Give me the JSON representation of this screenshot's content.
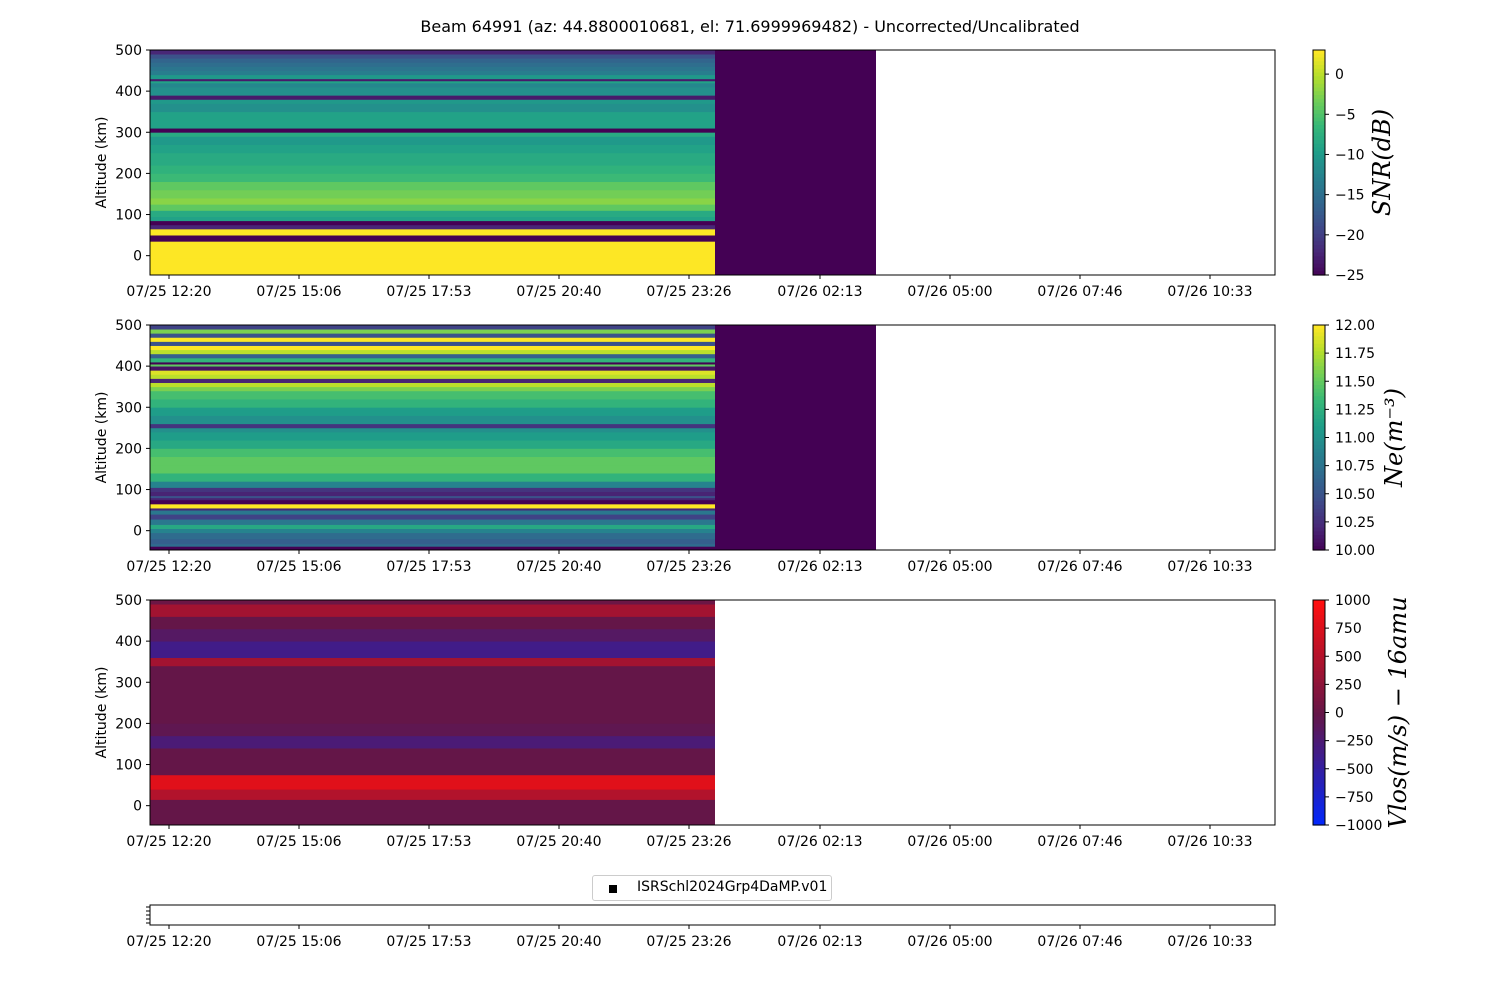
{
  "chart_data": {
    "title": "Beam 64991 (az: 44.8800010681, el: 71.6999969482) - Uncorrected/Uncalibrated",
    "x_ticks": [
      "07/25 12:20",
      "07/25 15:06",
      "07/25 17:53",
      "07/25 20:40",
      "07/25 23:26",
      "07/26 02:13",
      "07/26 05:00",
      "07/26 07:46",
      "07/26 10:33"
    ],
    "panels": [
      {
        "type": "heatmap",
        "ylabel": "Altitude (km)",
        "yticks": [
          "500",
          "400",
          "300",
          "200",
          "100",
          "0"
        ],
        "ylim": [
          -47,
          500
        ],
        "colorbar_label": "SNR(dB)",
        "colorbar_ticks": [
          "0",
          "−5",
          "−10",
          "−15",
          "−20",
          "−25"
        ],
        "colorbar_range": [
          -25,
          3
        ],
        "colormap": "viridis",
        "fill_end": "07/25 23:26",
        "dark_end": "07/26 02:13",
        "profile": [
          [
            -47,
            3
          ],
          [
            -42,
            3
          ],
          [
            -5,
            3
          ],
          [
            35,
            -25
          ],
          [
            50,
            3
          ],
          [
            65,
            -22
          ],
          [
            75,
            -25
          ],
          [
            85,
            -9
          ],
          [
            95,
            -8
          ],
          [
            110,
            -4
          ],
          [
            125,
            -2
          ],
          [
            140,
            -3
          ],
          [
            160,
            -4
          ],
          [
            180,
            -6
          ],
          [
            200,
            -7
          ],
          [
            220,
            -8
          ],
          [
            250,
            -9
          ],
          [
            270,
            -10
          ],
          [
            290,
            -8
          ],
          [
            300,
            -25
          ],
          [
            310,
            -9
          ],
          [
            330,
            -9
          ],
          [
            350,
            -11
          ],
          [
            370,
            -10
          ],
          [
            380,
            -23
          ],
          [
            390,
            -11
          ],
          [
            410,
            -12
          ],
          [
            420,
            -9
          ],
          [
            425,
            -23
          ],
          [
            430,
            -10
          ],
          [
            440,
            -13
          ],
          [
            450,
            -14
          ],
          [
            460,
            -15
          ],
          [
            470,
            -16
          ],
          [
            480,
            -18
          ],
          [
            490,
            -22
          ]
        ]
      },
      {
        "type": "heatmap",
        "ylabel": "Altitude (km)",
        "yticks": [
          "500",
          "400",
          "300",
          "200",
          "100",
          "0"
        ],
        "ylim": [
          -47,
          500
        ],
        "colorbar_label": "Ne(m⁻³)",
        "colorbar_ticks": [
          "12.00",
          "11.75",
          "11.50",
          "11.25",
          "11.00",
          "10.75",
          "10.50",
          "10.25",
          "10.00"
        ],
        "colorbar_range": [
          10,
          12
        ],
        "colormap": "viridis",
        "fill_end": "07/25 23:26",
        "dark_end": "07/26 02:13",
        "profile": [
          [
            -47,
            10
          ],
          [
            -38,
            10.7
          ],
          [
            -32,
            10.6
          ],
          [
            -20,
            10.7
          ],
          [
            -5,
            10.9
          ],
          [
            5,
            11.2
          ],
          [
            15,
            10.8
          ],
          [
            28,
            10.4
          ],
          [
            40,
            10.8
          ],
          [
            50,
            10.2
          ],
          [
            55,
            12
          ],
          [
            65,
            10
          ],
          [
            75,
            10.2
          ],
          [
            80,
            10.5
          ],
          [
            85,
            10.2
          ],
          [
            95,
            10.3
          ],
          [
            105,
            10.9
          ],
          [
            120,
            11.3
          ],
          [
            140,
            11.5
          ],
          [
            160,
            11.5
          ],
          [
            180,
            11.4
          ],
          [
            200,
            11.2
          ],
          [
            220,
            11.1
          ],
          [
            240,
            11.0
          ],
          [
            250,
            10.3
          ],
          [
            260,
            11.0
          ],
          [
            280,
            11.1
          ],
          [
            300,
            11.3
          ],
          [
            320,
            11.4
          ],
          [
            340,
            11.6
          ],
          [
            350,
            11.8
          ],
          [
            360,
            10.2
          ],
          [
            370,
            11.8
          ],
          [
            380,
            11.9
          ],
          [
            390,
            10.1
          ],
          [
            400,
            11.5
          ],
          [
            405,
            10
          ],
          [
            410,
            11.3
          ],
          [
            420,
            10.6
          ],
          [
            430,
            11.8
          ],
          [
            440,
            12
          ],
          [
            450,
            10.5
          ],
          [
            460,
            12
          ],
          [
            470,
            10.5
          ],
          [
            480,
            11.6
          ],
          [
            490,
            10.4
          ]
        ]
      },
      {
        "type": "heatmap",
        "ylabel": "Altitude (km)",
        "yticks": [
          "500",
          "400",
          "300",
          "200",
          "100",
          "0"
        ],
        "ylim": [
          -47,
          500
        ],
        "colorbar_label": "Vlos(m/s) − 16amu",
        "colorbar_ticks": [
          "1000",
          "750",
          "500",
          "250",
          "0",
          "−250",
          "−500",
          "−750",
          "−1000"
        ],
        "colorbar_range": [
          -1000,
          1000
        ],
        "colormap": "bwr-dark",
        "fill_end": "07/25 23:26",
        "dark_end": "07/25 23:26",
        "profile": [
          [
            -47,
            0
          ],
          [
            15,
            500
          ],
          [
            40,
            800
          ],
          [
            75,
            0
          ],
          [
            140,
            -250
          ],
          [
            170,
            -50
          ],
          [
            200,
            0
          ],
          [
            310,
            0
          ],
          [
            340,
            400
          ],
          [
            360,
            -350
          ],
          [
            400,
            -150
          ],
          [
            430,
            0
          ],
          [
            460,
            400
          ],
          [
            490,
            50
          ],
          [
            500,
            -200
          ]
        ]
      }
    ],
    "legend": {
      "label": "ISRSchl2024Grp4DaMP.v01",
      "marker": "square",
      "color": "#000000"
    }
  }
}
